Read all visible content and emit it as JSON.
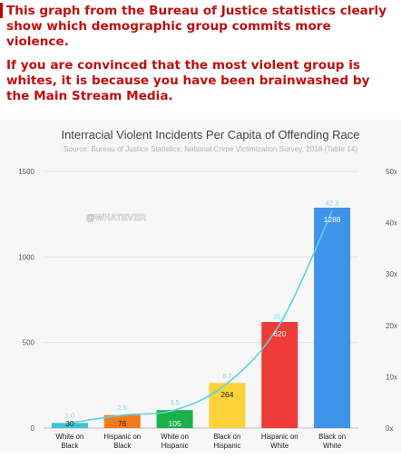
{
  "caption": {
    "paragraph1": "This graph from the Bureau of Justice statistics clearly show which demographic group commits more violence.",
    "paragraph2": "If you are convinced that the most violent group is whites, it is because you have been brainwashed by the Main Stream Media."
  },
  "watermark": "@WHATEVER",
  "colors": {
    "caption_text": "#c0100f",
    "line": "#5fd0e3",
    "line_label": "#7fd3e6"
  },
  "chart_data": {
    "type": "bar",
    "title": "Interracial Violent Incidents Per Capita of Offending Race",
    "subtitle": "Source: Bureau of Justice Statistics, National Crime Victimization Survey, 2018 (Table 14)",
    "categories": [
      [
        "White on",
        "Black"
      ],
      [
        "Hispanic on",
        "Black"
      ],
      [
        "White on",
        "Hispanic"
      ],
      [
        "Black on",
        "Hispanic"
      ],
      [
        "Hispanic on",
        "White"
      ],
      [
        "Black on",
        "White"
      ]
    ],
    "series": [
      {
        "type": "bar",
        "axis": "left",
        "values": [
          30,
          76,
          105,
          264,
          620,
          1288
        ],
        "colors": [
          "#3ec3d3",
          "#f47a20",
          "#1db14b",
          "#fdd23a",
          "#ee3b35",
          "#3f93e8"
        ],
        "value_labels": [
          "30",
          "76",
          "105",
          "264",
          "620",
          "1288"
        ]
      },
      {
        "type": "line",
        "axis": "right",
        "values": [
          1.0,
          2.5,
          3.5,
          8.7,
          20.2,
          42.3
        ],
        "value_labels": [
          "1.0",
          "2.5",
          "3.5",
          "8.7",
          "20.2",
          "42.3"
        ]
      }
    ],
    "left_axis": {
      "ticks": [
        0,
        500,
        1000,
        1500
      ],
      "tick_labels": [
        "0",
        "500",
        "1000",
        "1500"
      ],
      "ylim": [
        0,
        1500
      ]
    },
    "right_axis": {
      "ticks": [
        0,
        10,
        20,
        30,
        40,
        50
      ],
      "tick_labels": [
        "0x",
        "10x",
        "20x",
        "30x",
        "40x",
        "50x"
      ],
      "ylim": [
        0,
        50
      ]
    },
    "grid": true
  }
}
